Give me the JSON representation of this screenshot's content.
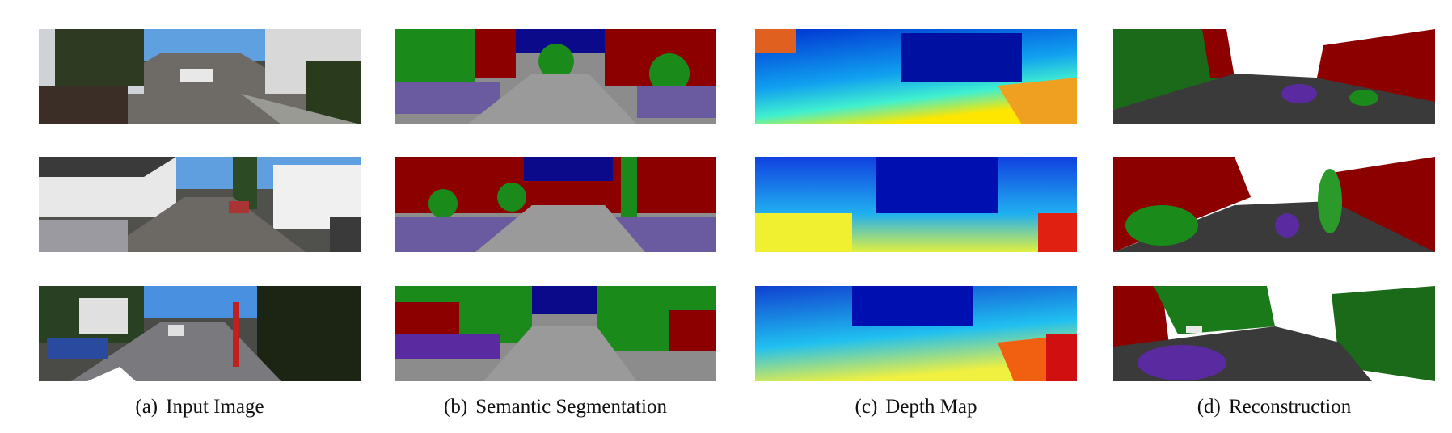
{
  "figure": {
    "columns": [
      {
        "label": "(a)",
        "caption": "Input Image"
      },
      {
        "label": "(b)",
        "caption": "Semantic Segmentation"
      },
      {
        "label": "(c)",
        "caption": "Depth Map"
      },
      {
        "label": "(d)",
        "caption": "Reconstruction"
      }
    ],
    "rows": 3
  },
  "colors": {
    "building": "#8c0000",
    "vegetation": "#1a8a1a",
    "sky": "#0a0a8a",
    "road": "#8c8c8c",
    "sidewalk": "#6a5aa0",
    "car": "#5a2aa0",
    "depth_near": "#ffe600",
    "depth_far": "#0020c0"
  }
}
